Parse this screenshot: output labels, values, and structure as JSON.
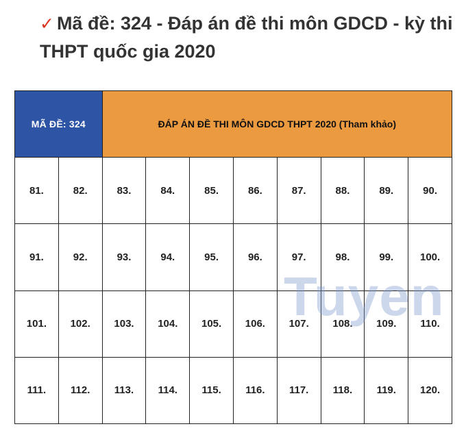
{
  "heading": {
    "check_glyph": "✓",
    "text": "Mã đề: 324 - Đáp án đề thi môn GDCD - kỳ thi THPT quốc gia 2020"
  },
  "table": {
    "code_label": "MÃ ĐỀ: 324",
    "title": "ĐÁP ÁN ĐỀ THI MÔN GDCD THPT 2020 (Tham khảo)",
    "rows": [
      [
        "81.",
        "82.",
        "83.",
        "84.",
        "85.",
        "86.",
        "87.",
        "88.",
        "89.",
        "90."
      ],
      [
        "91.",
        "92.",
        "93.",
        "94.",
        "95.",
        "96.",
        "97.",
        "98.",
        "99.",
        "100."
      ],
      [
        "101.",
        "102.",
        "103.",
        "104.",
        "105.",
        "106.",
        "107.",
        "108.",
        "109.",
        "110."
      ],
      [
        "111.",
        "112.",
        "113.",
        "114.",
        "115.",
        "116.",
        "117.",
        "118.",
        "119.",
        "120."
      ]
    ]
  },
  "watermark": {
    "text": "Tuyen"
  },
  "colors": {
    "code_bg": "#2e55a5",
    "title_bg": "#eb9a40",
    "check": "#d9351f"
  }
}
